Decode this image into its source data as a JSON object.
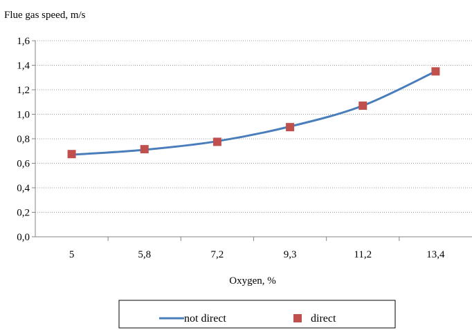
{
  "chart_data": {
    "type": "line",
    "title": "",
    "ylabel": "Flue gas speed, m/s",
    "xlabel": "Oxygen, %",
    "categories": [
      "5",
      "5,8",
      "7,2",
      "9,3",
      "11,2",
      "13,4"
    ],
    "y_tick_labels": [
      "0,0",
      "0,2",
      "0,4",
      "0,6",
      "0,8",
      "1,0",
      "1,2",
      "1,4",
      "1,6"
    ],
    "ylim": [
      0,
      1.6
    ],
    "grid": "horizontal dotted",
    "legend_position": "bottom",
    "series": [
      {
        "name": "not direct",
        "style": "line",
        "color": "#4a7ebb",
        "values": [
          0.67,
          0.71,
          0.78,
          0.9,
          1.07,
          1.35
        ]
      },
      {
        "name": "direct",
        "style": "square-markers",
        "color": "#c0504d",
        "values": [
          0.675,
          0.715,
          0.775,
          0.895,
          1.07,
          1.35
        ]
      }
    ]
  }
}
